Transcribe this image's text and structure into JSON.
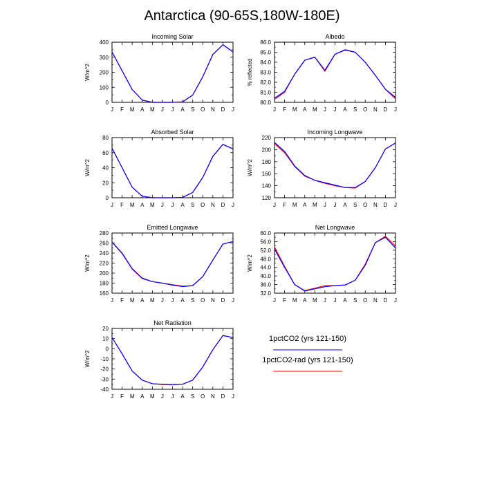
{
  "title": "Antarctica (90-65S,180W-180E)",
  "months": [
    "J",
    "F",
    "M",
    "A",
    "M",
    "J",
    "J",
    "A",
    "S",
    "O",
    "N",
    "D",
    "J"
  ],
  "colors": {
    "series1": "#0000ff",
    "series2": "#ff0000",
    "axis": "#000000"
  },
  "legend": [
    {
      "label": "1pctCO2 (yrs 121-150)",
      "color": "#0000ff"
    },
    {
      "label": "1pctCO2-rad (yrs 121-150)",
      "color": "#ff0000"
    }
  ],
  "chart_data": [
    {
      "type": "line",
      "title": "Incoming Solar",
      "ylabel": "W/m^2",
      "ylim": [
        0,
        400
      ],
      "yticks": [
        0,
        100,
        200,
        300,
        400
      ],
      "ytick_labels": [
        "0",
        "100",
        "200",
        "300",
        "400"
      ],
      "series": [
        {
          "name": "1pctCO2 (yrs 121-150)",
          "color": "#0000ff",
          "values": [
            335,
            210,
            85,
            15,
            0,
            0,
            0,
            3,
            48,
            170,
            318,
            383,
            335
          ]
        },
        {
          "name": "1pctCO2-rad (yrs 121-150)",
          "color": "#ff0000",
          "values": [
            335,
            210,
            85,
            15,
            0,
            0,
            0,
            3,
            48,
            170,
            318,
            383,
            335
          ]
        }
      ]
    },
    {
      "type": "line",
      "title": "Albedo",
      "ylabel": "% reflected",
      "ylim": [
        80.0,
        86.0
      ],
      "yticks": [
        80,
        81,
        82,
        83,
        84,
        85,
        86
      ],
      "ytick_labels": [
        "80.0",
        "81.0",
        "82.0",
        "83.0",
        "84.0",
        "85.0",
        "86.0"
      ],
      "series": [
        {
          "name": "1pctCO2 (yrs 121-150)",
          "color": "#0000ff",
          "values": [
            80.4,
            81.1,
            82.8,
            84.2,
            84.5,
            83.2,
            84.8,
            85.25,
            85.0,
            84.0,
            82.7,
            81.3,
            80.5
          ]
        },
        {
          "name": "1pctCO2-rad (yrs 121-150)",
          "color": "#ff0000",
          "values": [
            80.3,
            81.0,
            82.8,
            84.2,
            84.5,
            83.1,
            84.8,
            85.2,
            85.0,
            84.0,
            82.7,
            81.3,
            80.35
          ]
        }
      ]
    },
    {
      "type": "line",
      "title": "Absorbed Solar",
      "ylabel": "W/m^2",
      "ylim": [
        0,
        80
      ],
      "yticks": [
        0,
        20,
        40,
        60,
        80
      ],
      "ytick_labels": [
        "0",
        "20",
        "40",
        "60",
        "80"
      ],
      "series": [
        {
          "name": "1pctCO2 (yrs 121-150)",
          "color": "#0000ff",
          "values": [
            66,
            40,
            14,
            2,
            0,
            0,
            0,
            0.5,
            7,
            27,
            55,
            71,
            65
          ]
        },
        {
          "name": "1pctCO2-rad (yrs 121-150)",
          "color": "#ff0000",
          "values": [
            66,
            40,
            14,
            2,
            0,
            0,
            0,
            0.5,
            7,
            27,
            55,
            71,
            65
          ]
        }
      ]
    },
    {
      "type": "line",
      "title": "Incoming Longwave",
      "ylabel": "W/m^2",
      "ylim": [
        120,
        220
      ],
      "yticks": [
        120,
        140,
        160,
        180,
        200,
        220
      ],
      "ytick_labels": [
        "120",
        "140",
        "160",
        "180",
        "200",
        "220"
      ],
      "series": [
        {
          "name": "1pctCO2 (yrs 121-150)",
          "color": "#0000ff",
          "values": [
            212,
            197,
            173,
            157,
            149,
            145,
            141,
            137,
            137,
            147,
            170,
            201,
            211
          ]
        },
        {
          "name": "1pctCO2-rad (yrs 121-150)",
          "color": "#ff0000",
          "values": [
            210,
            195,
            172,
            156,
            149,
            144,
            140,
            137,
            136,
            147,
            170,
            201,
            211
          ]
        }
      ]
    },
    {
      "type": "line",
      "title": "Emitted Longwave",
      "ylabel": "W/m^2",
      "ylim": [
        160,
        280
      ],
      "yticks": [
        160,
        180,
        200,
        220,
        240,
        260,
        280
      ],
      "ytick_labels": [
        "160",
        "180",
        "200",
        "220",
        "240",
        "260",
        "280"
      ],
      "series": [
        {
          "name": "1pctCO2 (yrs 121-150)",
          "color": "#0000ff",
          "values": [
            262,
            240,
            209,
            190,
            183,
            180,
            176,
            173,
            175,
            193,
            226,
            258,
            263
          ]
        },
        {
          "name": "1pctCO2-rad (yrs 121-150)",
          "color": "#ff0000",
          "values": [
            262,
            239,
            208,
            189,
            183,
            180,
            177,
            174,
            175,
            193,
            226,
            258,
            263
          ]
        }
      ]
    },
    {
      "type": "line",
      "title": "Net Longwave",
      "ylabel": "W/m^2",
      "ylim": [
        32.0,
        60.0
      ],
      "yticks": [
        32,
        36,
        40,
        44,
        48,
        52,
        56,
        60
      ],
      "ytick_labels": [
        "32.0",
        "36.0",
        "40.0",
        "44.0",
        "48.0",
        "52.0",
        "56.0",
        "60.0"
      ],
      "series": [
        {
          "name": "1pctCO2 (yrs 121-150)",
          "color": "#0000ff",
          "values": [
            52.5,
            44.0,
            36.0,
            33.0,
            34.0,
            35.0,
            35.5,
            35.8,
            38.0,
            45.0,
            55.5,
            58.0,
            53.0
          ]
        },
        {
          "name": "1pctCO2-rad (yrs 121-150)",
          "color": "#ff0000",
          "values": [
            53.5,
            44.5,
            36.0,
            33.2,
            34.3,
            35.5,
            35.5,
            35.8,
            38.0,
            45.5,
            55.5,
            58.5,
            54.0
          ]
        }
      ]
    },
    {
      "type": "line",
      "title": "Net Radiation",
      "ylabel": "W/m^2",
      "ylim": [
        -40,
        20
      ],
      "yticks": [
        -40,
        -30,
        -20,
        -10,
        0,
        10,
        20
      ],
      "ytick_labels": [
        "-40",
        "-30",
        "-20",
        "-10",
        "0",
        "10",
        "20"
      ],
      "series": [
        {
          "name": "1pctCO2 (yrs 121-150)",
          "color": "#0000ff",
          "values": [
            11,
            -5,
            -22,
            -31,
            -34.5,
            -35,
            -35.5,
            -35,
            -31,
            -18,
            -1,
            13,
            11
          ]
        },
        {
          "name": "1pctCO2-rad (yrs 121-150)",
          "color": "#ff0000",
          "values": [
            11,
            -5,
            -22,
            -31,
            -34.5,
            -35.3,
            -35.7,
            -35,
            -31,
            -18,
            -1,
            13,
            11
          ]
        }
      ]
    }
  ]
}
